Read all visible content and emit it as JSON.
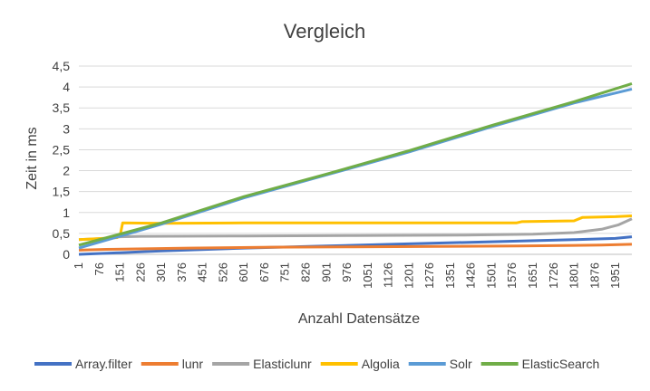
{
  "chart_data": {
    "type": "line",
    "title": "Vergleich",
    "xlabel": "Anzahl Datensätze",
    "ylabel": "Zeit in ms",
    "x_ticks": [
      "1",
      "76",
      "151",
      "226",
      "301",
      "376",
      "451",
      "526",
      "601",
      "676",
      "751",
      "826",
      "901",
      "976",
      "1051",
      "1126",
      "1201",
      "1276",
      "1351",
      "1426",
      "1501",
      "1576",
      "1651",
      "1726",
      "1801",
      "1876",
      "1951"
    ],
    "y_ticks": [
      "0",
      "0,5",
      "1",
      "1,5",
      "2",
      "2,5",
      "3",
      "3,5",
      "4",
      "4,5"
    ],
    "ylim": [
      0,
      4.5
    ],
    "xlim": [
      1,
      2010
    ],
    "grid": true,
    "legend_position": "bottom",
    "series": [
      {
        "name": "Array.filter",
        "color": "#4472C4",
        "points": [
          [
            1,
            0.0
          ],
          [
            150,
            0.04
          ],
          [
            300,
            0.08
          ],
          [
            600,
            0.15
          ],
          [
            900,
            0.2
          ],
          [
            1200,
            0.25
          ],
          [
            1500,
            0.3
          ],
          [
            1800,
            0.35
          ],
          [
            1950,
            0.38
          ],
          [
            2010,
            0.42
          ]
        ]
      },
      {
        "name": "lunr",
        "color": "#ED7D31",
        "points": [
          [
            1,
            0.1
          ],
          [
            100,
            0.12
          ],
          [
            400,
            0.15
          ],
          [
            700,
            0.17
          ],
          [
            1000,
            0.18
          ],
          [
            1300,
            0.19
          ],
          [
            1600,
            0.2
          ],
          [
            1900,
            0.22
          ],
          [
            2010,
            0.24
          ]
        ]
      },
      {
        "name": "Elasticlunr",
        "color": "#A5A5A5",
        "points": [
          [
            1,
            0.35
          ],
          [
            100,
            0.38
          ],
          [
            151,
            0.42
          ],
          [
            226,
            0.43
          ],
          [
            600,
            0.44
          ],
          [
            1000,
            0.45
          ],
          [
            1400,
            0.46
          ],
          [
            1650,
            0.48
          ],
          [
            1800,
            0.52
          ],
          [
            1900,
            0.6
          ],
          [
            1960,
            0.7
          ],
          [
            2010,
            0.85
          ]
        ]
      },
      {
        "name": "Algolia",
        "color": "#FFC000",
        "points": [
          [
            1,
            0.35
          ],
          [
            140,
            0.4
          ],
          [
            151,
            0.45
          ],
          [
            160,
            0.75
          ],
          [
            300,
            0.74
          ],
          [
            600,
            0.75
          ],
          [
            1000,
            0.75
          ],
          [
            1500,
            0.75
          ],
          [
            1590,
            0.75
          ],
          [
            1610,
            0.78
          ],
          [
            1800,
            0.8
          ],
          [
            1830,
            0.88
          ],
          [
            1950,
            0.9
          ],
          [
            2010,
            0.92
          ]
        ]
      },
      {
        "name": "Solr",
        "color": "#5B9BD5",
        "points": [
          [
            1,
            0.15
          ],
          [
            301,
            0.72
          ],
          [
            601,
            1.35
          ],
          [
            901,
            1.9
          ],
          [
            1201,
            2.45
          ],
          [
            1501,
            3.05
          ],
          [
            1801,
            3.62
          ],
          [
            2010,
            3.95
          ]
        ]
      },
      {
        "name": "ElasticSearch",
        "color": "#70AD47",
        "points": [
          [
            1,
            0.22
          ],
          [
            301,
            0.75
          ],
          [
            601,
            1.38
          ],
          [
            901,
            1.92
          ],
          [
            1201,
            2.48
          ],
          [
            1501,
            3.08
          ],
          [
            1801,
            3.65
          ],
          [
            2010,
            4.08
          ]
        ]
      }
    ]
  }
}
